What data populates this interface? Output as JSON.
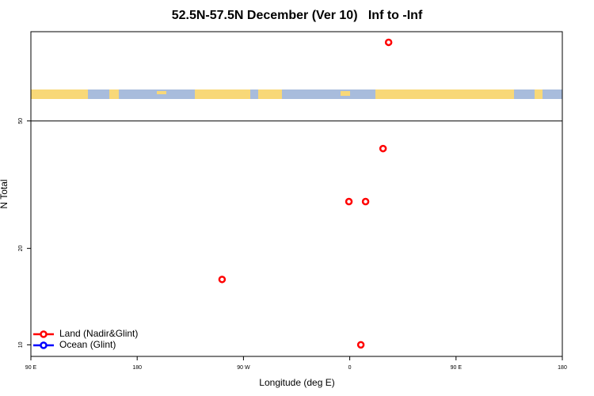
{
  "chart_data": {
    "type": "scatter",
    "title": "52.5N-57.5N December (Ver 10)   Inf to -Inf",
    "x_label": "Longitude (deg E)",
    "y_label": "N Total",
    "xlim": [
      90,
      540
    ],
    "xticks": [
      {
        "value": 90,
        "label": "90 E"
      },
      180,
      {
        "value": 270,
        "label": "90 W"
      },
      {
        "value": 360,
        "label": "0"
      },
      {
        "value": 450,
        "label": "90 E"
      },
      {
        "value": 540,
        "label": "180"
      }
    ],
    "ylim": [
      9.2,
      95
    ],
    "yticks": [
      10,
      20,
      50
    ],
    "ylog": true,
    "reference_line": 50,
    "legend": "bottom-left",
    "series": [
      {
        "name": "Land (Nadir&Glint)",
        "color": "#ff0000",
        "x": [
          392.9,
          388.2,
          359.3,
          373.4,
          251.9,
          369.4
        ],
        "values": [
          88,
          41,
          28,
          28,
          16,
          10
        ]
      },
      {
        "name": "Ocean (Glint)",
        "color": "#0000ff",
        "x": [],
        "values": []
      }
    ]
  }
}
